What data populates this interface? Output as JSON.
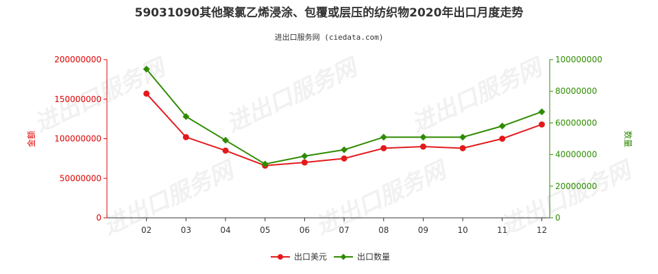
{
  "chart_data": {
    "type": "line",
    "title": "59031090其他聚氯乙烯浸涂、包覆或层压的纺织物2020年出口月度走势",
    "subtitle": "进出口服务网 (ciedata.com)",
    "categories": [
      "02",
      "03",
      "04",
      "05",
      "06",
      "07",
      "08",
      "09",
      "10",
      "11",
      "12"
    ],
    "y_left": {
      "label": "金额",
      "range": [
        0,
        200000000
      ],
      "ticks": [
        "0",
        "50000000",
        "100000000",
        "150000000",
        "200000000"
      ],
      "color": "#e00000"
    },
    "y_right": {
      "label": "数量",
      "range": [
        0,
        100000000
      ],
      "ticks": [
        "0",
        "20000000",
        "40000000",
        "60000000",
        "80000000",
        "100000000"
      ],
      "color": "#2e8b00"
    },
    "series": [
      {
        "name": "出口美元",
        "axis": "left",
        "color": "#e31a1c",
        "values": [
          157000000,
          102000000,
          85000000,
          66000000,
          70000000,
          75000000,
          88000000,
          90000000,
          88000000,
          100000000,
          118000000
        ]
      },
      {
        "name": "出口数量",
        "axis": "right",
        "color": "#2e8b00",
        "values": [
          94000000,
          64000000,
          49000000,
          34000000,
          39000000,
          43000000,
          51000000,
          51000000,
          51000000,
          58000000,
          67000000
        ]
      }
    ],
    "grid": false,
    "legend": "bottom-center",
    "watermark": "进出口服务网"
  }
}
